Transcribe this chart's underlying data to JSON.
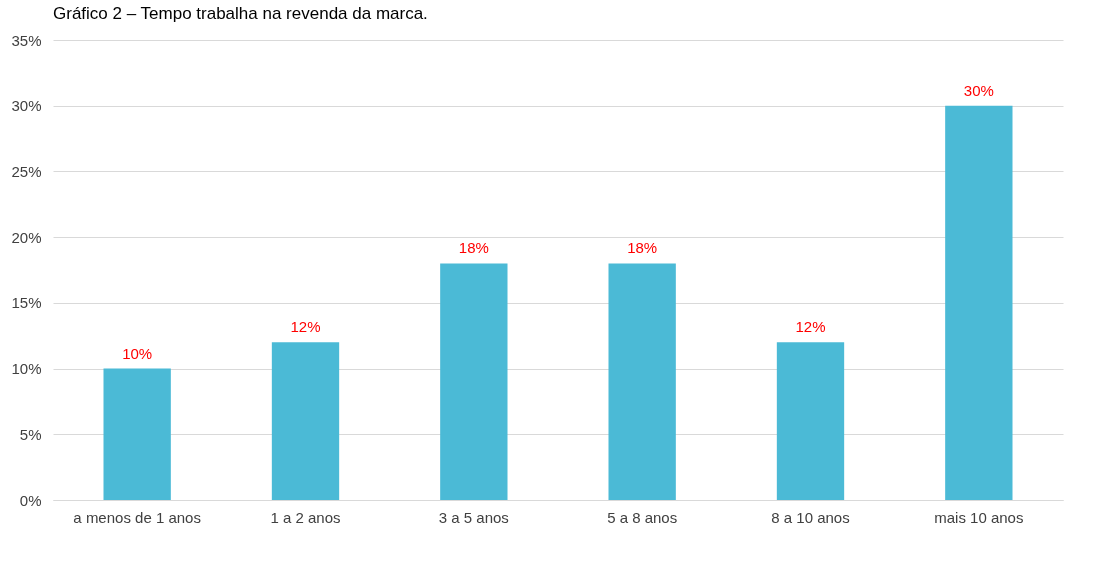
{
  "chart_data": {
    "type": "bar",
    "title": "Gráfico 2 – Tempo trabalha na revenda da marca.",
    "categories": [
      "a menos de 1 anos",
      "1 a 2 anos",
      "3 a 5 anos",
      "5 a 8 anos",
      "8 a 10 anos",
      "mais 10 anos"
    ],
    "values": [
      10,
      12,
      18,
      18,
      12,
      30
    ],
    "value_labels": [
      "10%",
      "12%",
      "18%",
      "18%",
      "12%",
      "30%"
    ],
    "color": "#4bbad6",
    "ylim": [
      0,
      35
    ],
    "yticks": [
      {
        "value": 0,
        "label": "0%"
      },
      {
        "value": 5,
        "label": "5%"
      },
      {
        "value": 10,
        "label": "10%"
      },
      {
        "value": 15,
        "label": "15%"
      },
      {
        "value": 20,
        "label": "20%"
      },
      {
        "value": 25,
        "label": "25%"
      },
      {
        "value": 30,
        "label": "30%"
      },
      {
        "value": 35,
        "label": "35%"
      }
    ],
    "grid": "y"
  }
}
